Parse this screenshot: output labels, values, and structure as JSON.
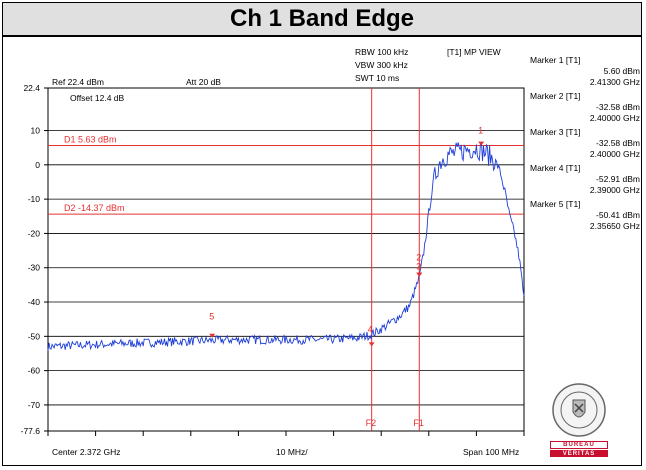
{
  "title": "Ch 1 Band Edge",
  "header": {
    "ref": "Ref 22.4 dBm",
    "att": "Att  20 dB",
    "offset": "Offset 12.4 dB",
    "rbw": "RBW 100 kHz",
    "vbw": "VBW 300 kHz",
    "swt": "SWT 10 ms",
    "mode": "[T1] MP VIEW"
  },
  "footer": {
    "center": "Center 2.372 GHz",
    "div": "10 MHz/",
    "span": "Span 100 MHz"
  },
  "markers": [
    {
      "title": "Marker 1 [T1]",
      "level": "5.60 dBm",
      "freq": "2.41300 GHz"
    },
    {
      "title": "Marker 2 [T1]",
      "level": "-32.58 dBm",
      "freq": "2.40000 GHz"
    },
    {
      "title": "Marker 3 [T1]",
      "level": "-32.58 dBm",
      "freq": "2.40000 GHz"
    },
    {
      "title": "Marker 4 [T1]",
      "level": "-52.91 dBm",
      "freq": "2.39000 GHz"
    },
    {
      "title": "Marker 5 [T1]",
      "level": "-50.41 dBm",
      "freq": "2.35650 GHz"
    }
  ],
  "logo": {
    "line1": "BUREAU",
    "line2": "VERITAS",
    "seal_text": "BUREAU VERITAS 1828"
  },
  "colors": {
    "trace": "#1f3fd6",
    "lines": "#e53030",
    "grid": "#000000"
  },
  "chart_data": {
    "type": "line",
    "x_unit": "GHz",
    "y_unit": "dBm",
    "xlim": [
      2.322,
      2.422
    ],
    "ylim": [
      -77.6,
      22.4
    ],
    "y_ticks": [
      22.4,
      10,
      0,
      -10,
      -20,
      -30,
      -40,
      -50,
      -60,
      -70,
      -77.6
    ],
    "y_tick_labels": [
      "22.4",
      "10",
      "0",
      "-10",
      "-20",
      "-30",
      "-40",
      "-50",
      "-60",
      "-70",
      "-77.6"
    ],
    "hlines": [
      {
        "label": "D1 5.63 dBm",
        "value": 5.63
      },
      {
        "label": "D2 -14.37 dBm",
        "value": -14.37
      }
    ],
    "vlines": [
      {
        "label": "F2",
        "value": 2.39
      },
      {
        "label": "F1",
        "value": 2.4
      }
    ],
    "marker_points": [
      {
        "label": "1",
        "x": 2.413,
        "y": 5.6
      },
      {
        "label": "2",
        "x": 2.4,
        "y": -32.58
      },
      {
        "label": "3",
        "x": 2.4,
        "y": -32.58
      },
      {
        "label": "4",
        "x": 2.39,
        "y": -52.91
      },
      {
        "label": "5",
        "x": 2.3565,
        "y": -50.41
      }
    ],
    "series": [
      {
        "x": [
          2.322,
          2.33,
          2.34,
          2.35,
          2.36,
          2.37,
          2.38,
          2.387,
          2.39,
          2.393,
          2.396,
          2.398,
          2.4,
          2.401,
          2.402,
          2.403,
          2.404,
          2.405,
          2.406,
          2.408,
          2.41,
          2.412,
          2.414,
          2.416,
          2.417,
          2.418,
          2.419,
          2.42,
          2.421,
          2.422
        ],
        "y": [
          -53,
          -52.5,
          -52,
          -51.5,
          -51,
          -51,
          -51,
          -50.5,
          -49.5,
          -47,
          -44,
          -41,
          -33,
          -25,
          -14,
          -5,
          0,
          2,
          3,
          3.5,
          4.5,
          5,
          3.5,
          1,
          -2,
          -8,
          -15,
          -20,
          -27,
          -39
        ]
      }
    ]
  }
}
